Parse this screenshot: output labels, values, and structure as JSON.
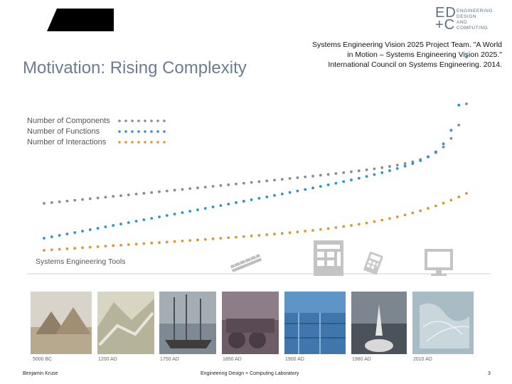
{
  "slide": {
    "title": "Motivation: Rising Complexity",
    "citation": "Systems Engineering Vision 2025 Project Team. \"A World in Motion – Systems Engineering Vision 2025.\" International Council on Systems Engineering. 2014.",
    "logo": {
      "mark_line1": "ED",
      "mark_line2": "+C",
      "text_line1": "ENGINEERING",
      "text_line2": "DESIGN",
      "text_line3": "AND",
      "text_line4": "COMPUTING"
    },
    "footer": {
      "author": "Benjamin Kruse",
      "lab": "Engineering Design + Computing Laboratory",
      "page": "3"
    }
  },
  "figure": {
    "legend": [
      {
        "label": "Number of Components",
        "color": "#8a8a8a"
      },
      {
        "label": "Number of Functions",
        "color": "#2a93c9"
      },
      {
        "label": "Number of Interactions",
        "color": "#d9973a"
      }
    ],
    "tools_label": "Systems Engineering Tools",
    "tools_icons": [
      "slide-rule-icon",
      "drafting-machine-icon",
      "calculator-icon",
      "computer-monitor-icon"
    ],
    "eras": [
      {
        "label": "5000 BC",
        "image": "pyramids-photo"
      },
      {
        "label": "1200 AD",
        "image": "great-wall-photo"
      },
      {
        "label": "1750 AD",
        "image": "sailing-ships-photo"
      },
      {
        "label": "1850 AD",
        "image": "steam-locomotive-photo"
      },
      {
        "label": "1900 AD",
        "image": "assembly-line-photo"
      },
      {
        "label": "1980 AD",
        "image": "space-shuttle-photo"
      },
      {
        "label": "2010 AD",
        "image": "world-map-network-photo"
      }
    ]
  }
}
